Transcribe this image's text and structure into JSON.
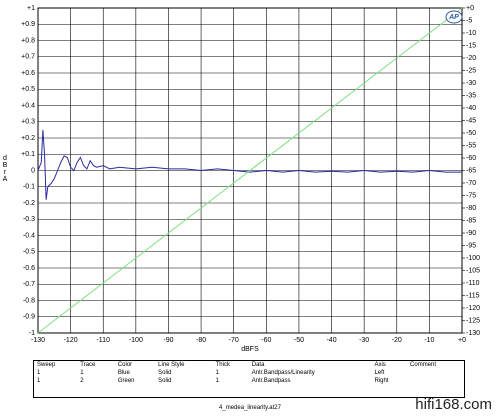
{
  "chart_data": {
    "type": "line",
    "logo": "AP",
    "x_label": "dBFS",
    "y_label": "dBrA",
    "xlim": [
      -130,
      0
    ],
    "xticks": [
      -130,
      -120,
      -110,
      -100,
      -90,
      -80,
      -70,
      -60,
      -50,
      -40,
      -30,
      -20,
      -10,
      {
        "value": 0,
        "label": "+0"
      }
    ],
    "ylim": [
      -1,
      1
    ],
    "yticks": [
      {
        "value": 1,
        "label": "+1"
      },
      {
        "value": 0.9,
        "label": "+0.9"
      },
      {
        "value": 0.8,
        "label": "+0.8"
      },
      {
        "value": 0.7,
        "label": "+0.7"
      },
      {
        "value": 0.6,
        "label": "+0.6"
      },
      {
        "value": 0.5,
        "label": "+0.5"
      },
      {
        "value": 0.4,
        "label": "+0.4"
      },
      {
        "value": 0.3,
        "label": "+0.3"
      },
      {
        "value": 0.2,
        "label": "+0.2"
      },
      {
        "value": 0.1,
        "label": "+0.1"
      },
      0,
      -0.1,
      -0.2,
      -0.3,
      -0.4,
      -0.5,
      -0.6,
      -0.7,
      -0.8,
      -0.9,
      -1
    ],
    "y2lim": [
      -130,
      0
    ],
    "y2ticks": [
      {
        "value": 0,
        "label": "+0"
      },
      -5,
      -10,
      -15,
      -20,
      -25,
      -30,
      -35,
      -40,
      -45,
      -50,
      -55,
      -60,
      -65,
      -70,
      -75,
      -80,
      -85,
      -90,
      -95,
      -100,
      -105,
      -110,
      -115,
      -120,
      -125,
      -130
    ],
    "grid": true,
    "series": [
      {
        "name": "Anlr.Bandpass/Linearity",
        "color": "#2b2ba0",
        "x": [
          -130,
          -129,
          -128.5,
          -128,
          -127.5,
          -127,
          -126,
          -125,
          -124,
          -123,
          -122,
          -121,
          -120,
          -119,
          -118,
          -117,
          -116,
          -115,
          -114,
          -113,
          -112,
          -110,
          -108,
          -105,
          -100,
          -95,
          -90,
          -85,
          -80,
          -75,
          -70,
          -65,
          -60,
          -55,
          -50,
          -45,
          -40,
          -35,
          -30,
          -25,
          -20,
          -15,
          -10,
          -5,
          0
        ],
        "values": [
          0,
          0.05,
          0.25,
          0.1,
          -0.18,
          -0.1,
          -0.08,
          -0.05,
          0,
          0.05,
          0.09,
          0.08,
          0.02,
          0,
          0.05,
          0.08,
          0.03,
          0.01,
          0.06,
          0.03,
          0.02,
          0.03,
          0.01,
          0.02,
          0.01,
          0.02,
          0.01,
          0.01,
          0,
          0.01,
          0,
          -0.01,
          0,
          -0.01,
          0,
          -0.01,
          -0.005,
          -0.01,
          0,
          -0.01,
          -0.005,
          -0.01,
          0,
          -0.01,
          -0.01
        ]
      },
      {
        "name": "Anlr.Bandpass",
        "color": "#7ee07e",
        "axis": "y2",
        "x": [
          -130,
          0
        ],
        "values": [
          -130,
          0
        ]
      }
    ]
  },
  "table": {
    "headers": [
      "Sweep",
      "Trace",
      "Color",
      "Line Style",
      "Thick",
      "Data",
      "Axis",
      "Comment"
    ],
    "rows": [
      [
        "1",
        "1",
        "Blue",
        "Solid",
        "1",
        "Anlr.Bandpass/Linearity",
        "Left"
      ],
      [
        "1",
        "2",
        "Green",
        "Solid",
        "1",
        "Anlr.Bandpass",
        "Right"
      ]
    ]
  },
  "footer": "4_medea_linearity.at27",
  "watermark": "hifi168.com"
}
